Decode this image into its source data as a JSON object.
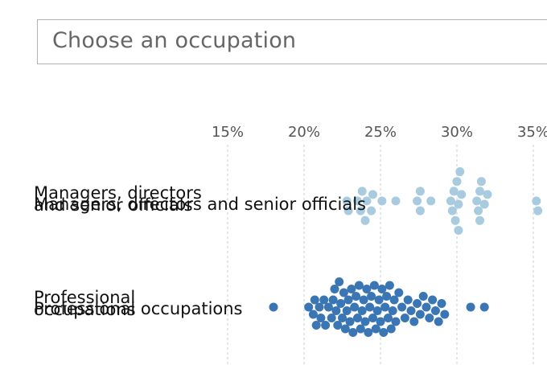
{
  "selector": {
    "placeholder": "Choose an occupation"
  },
  "colors": {
    "managers": "#a8cbe0",
    "professional": "#3a76b3",
    "grid": "#cccccc",
    "tick": "#555555"
  },
  "chart_data": {
    "type": "scatter",
    "title": "",
    "xlabel": "",
    "ylabel": "",
    "x_ticks": [
      "15%",
      "20%",
      "25%",
      "30%",
      "35%"
    ],
    "xlim": [
      11.5,
      36.5
    ],
    "grid": true,
    "series": [
      {
        "name": "Managers, directors and senior officials",
        "label_lines": [
          "Managers, directors",
          "and senior officials"
        ],
        "overlay_label": "Managers, directors and senior officials",
        "values": [
          22.8,
          22.9,
          23.5,
          23.7,
          23.8,
          24.0,
          24.1,
          24.4,
          24.5,
          25.1,
          26.0,
          27.4,
          27.6,
          27.6,
          28.3,
          29.6,
          29.7,
          29.8,
          29.9,
          30.0,
          30.1,
          30.1,
          30.2,
          30.3,
          31.3,
          31.4,
          31.5,
          31.5,
          31.6,
          31.8,
          32.0,
          35.2,
          35.3
        ]
      },
      {
        "name": "Professional occupations",
        "label_lines": [
          "Professional",
          "occupations"
        ],
        "overlay_label": "Professional occupations",
        "values": [
          18.0,
          20.3,
          20.6,
          20.7,
          20.8,
          21.0,
          21.1,
          21.3,
          21.4,
          21.6,
          21.8,
          21.9,
          22.0,
          22.1,
          22.2,
          22.3,
          22.4,
          22.5,
          22.6,
          22.7,
          22.8,
          22.9,
          23.0,
          23.1,
          23.2,
          23.3,
          23.4,
          23.5,
          23.6,
          23.7,
          23.8,
          23.9,
          24.0,
          24.1,
          24.2,
          24.3,
          24.4,
          24.5,
          24.6,
          24.7,
          24.8,
          24.9,
          25.0,
          25.1,
          25.2,
          25.3,
          25.4,
          25.5,
          25.6,
          25.7,
          25.8,
          25.9,
          26.0,
          26.2,
          26.4,
          26.6,
          26.8,
          27.0,
          27.2,
          27.4,
          27.6,
          27.8,
          28.0,
          28.2,
          28.4,
          28.6,
          28.8,
          29.0,
          29.2,
          30.9,
          31.8
        ]
      }
    ]
  }
}
